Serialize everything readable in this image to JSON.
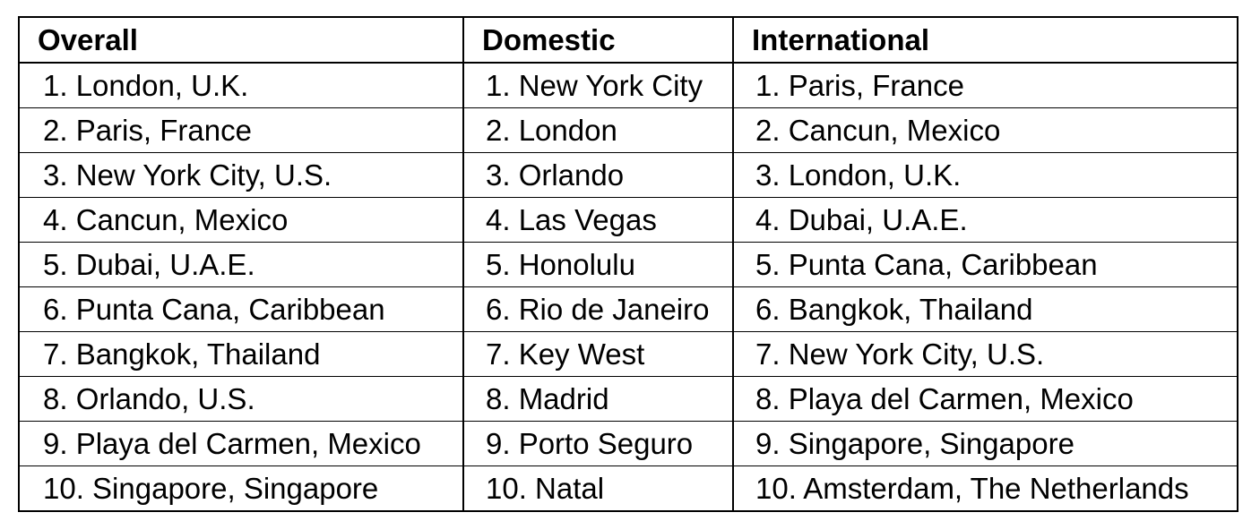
{
  "table": {
    "headers": [
      "Overall",
      "Domestic",
      "International"
    ],
    "rows": [
      [
        "1. London, U.K.",
        "1. New York City",
        "1. Paris, France"
      ],
      [
        "2. Paris, France",
        "2. London",
        "2. Cancun, Mexico"
      ],
      [
        "3. New York City, U.S.",
        "3. Orlando",
        "3. London, U.K."
      ],
      [
        "4. Cancun, Mexico",
        "4. Las Vegas",
        "4. Dubai, U.A.E."
      ],
      [
        "5. Dubai, U.A.E.",
        "5. Honolulu",
        "5. Punta Cana, Caribbean"
      ],
      [
        "6. Punta Cana, Caribbean",
        "6. Rio de Janeiro",
        "6. Bangkok, Thailand"
      ],
      [
        "7. Bangkok, Thailand",
        "7. Key West",
        "7. New York City, U.S."
      ],
      [
        "8. Orlando, U.S.",
        "8. Madrid",
        "8. Playa del Carmen, Mexico"
      ],
      [
        "9. Playa del Carmen, Mexico",
        "9. Porto Seguro",
        "9. Singapore, Singapore"
      ],
      [
        "10. Singapore, Singapore",
        "10. Natal",
        "10. Amsterdam, The Netherlands"
      ]
    ]
  }
}
